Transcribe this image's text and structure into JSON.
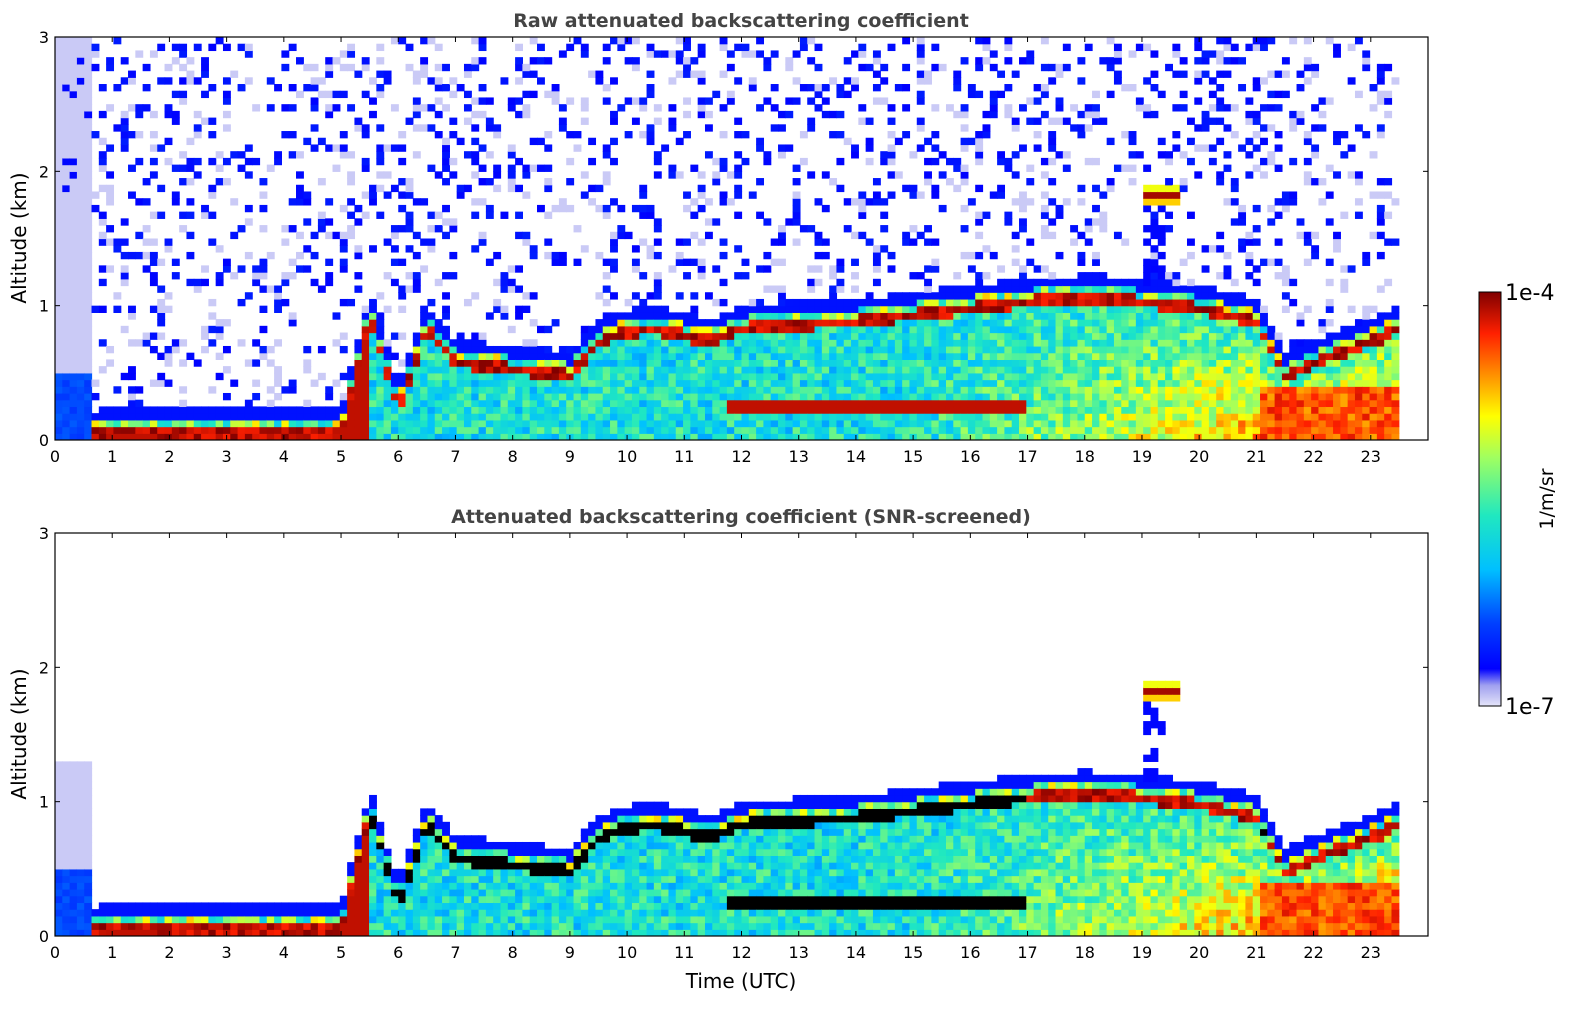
{
  "colorbar": {
    "max_label": "1e-4",
    "min_label": "1e-7",
    "unit_label": "1/m/sr",
    "scale": "log",
    "colormap": "jet",
    "low_colors": [
      "#e6e6fa",
      "#c8c8f5",
      "#a0a0f0",
      "#0000ff"
    ],
    "high_color": "#800000"
  },
  "chart_data": [
    {
      "type": "heatmap",
      "title": "Raw attenuated backscattering coefficient",
      "xlabel": "",
      "ylabel": "Altitude (km)",
      "xlim": [
        0,
        24
      ],
      "ylim": [
        0,
        3
      ],
      "x_ticks": [
        "0",
        "1",
        "2",
        "3",
        "4",
        "5",
        "6",
        "7",
        "8",
        "9",
        "10",
        "11",
        "12",
        "13",
        "14",
        "15",
        "16",
        "17",
        "18",
        "19",
        "20",
        "21",
        "22",
        "23"
      ],
      "y_ticks": [
        "0",
        "1",
        "2",
        "3"
      ],
      "data_extent_x": [
        0,
        23.5
      ],
      "boundary_layer_top_km": {
        "time": [
          0.6,
          1,
          2,
          3,
          4,
          5,
          5.5,
          6,
          6.5,
          7,
          8,
          9,
          9.5,
          10,
          10.5,
          11,
          11.5,
          12,
          13,
          14,
          15,
          16,
          17,
          18,
          19,
          20,
          21,
          21.5,
          22,
          23,
          23.5
        ],
        "altitude": [
          0.15,
          0.2,
          0.18,
          0.18,
          0.18,
          0.18,
          1.05,
          0.35,
          0.95,
          0.7,
          0.65,
          0.6,
          0.85,
          0.92,
          0.95,
          0.9,
          0.85,
          0.95,
          0.98,
          1.0,
          1.05,
          1.1,
          1.15,
          1.18,
          1.15,
          1.1,
          1.0,
          0.6,
          0.7,
          0.85,
          0.95
        ]
      },
      "cloud_layer_km": {
        "time": [
          19.0,
          19.7
        ],
        "altitude": 1.82
      }
    },
    {
      "type": "heatmap",
      "title": "Attenuated backscattering coefficient (SNR-screened)",
      "xlabel": "Time (UTC)",
      "ylabel": "Altitude (km)",
      "xlim": [
        0,
        24
      ],
      "ylim": [
        0,
        3
      ],
      "x_ticks": [
        "0",
        "1",
        "2",
        "3",
        "4",
        "5",
        "6",
        "7",
        "8",
        "9",
        "10",
        "11",
        "12",
        "13",
        "14",
        "15",
        "16",
        "17",
        "18",
        "19",
        "20",
        "21",
        "22",
        "23"
      ],
      "y_ticks": [
        "0",
        "1",
        "2",
        "3"
      ],
      "data_extent_x": [
        0,
        23.5
      ],
      "saturated_color": "#000000",
      "cloud_layer_km": {
        "time": [
          19.0,
          19.7
        ],
        "altitude": 1.82
      }
    }
  ]
}
